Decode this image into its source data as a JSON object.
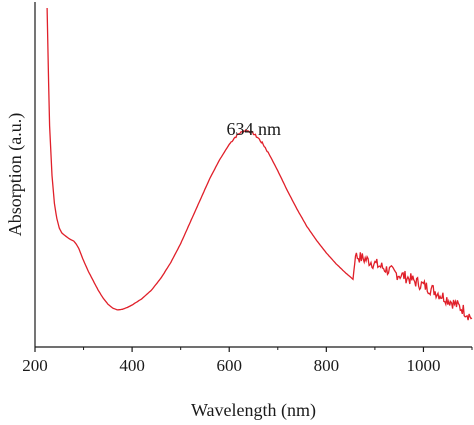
{
  "chart_data": {
    "type": "line",
    "title": "",
    "xlabel": "Wavelength (nm)",
    "ylabel": "Absorption (a.u.)",
    "xlim": [
      200,
      1100
    ],
    "ylim": [
      0,
      1
    ],
    "x_ticks": [
      200,
      400,
      600,
      800,
      1000
    ],
    "x_tick_labels": [
      "200",
      "400",
      "600",
      "800",
      "1000"
    ],
    "y_ticks_shown": false,
    "grid": false,
    "legend": "none",
    "colors": {
      "line": "#e0202a",
      "axis": "#1a1a1a"
    },
    "annotations": [
      {
        "text": "634 nm",
        "x": 634,
        "y": 0.62
      }
    ],
    "series": [
      {
        "x": [
          225,
          226,
          228,
          230,
          235,
          240,
          245,
          250,
          255,
          260,
          265,
          270,
          275,
          280,
          285,
          290,
          295,
          300,
          310,
          320,
          330,
          340,
          350,
          360,
          370,
          380,
          390,
          400,
          420,
          440,
          460,
          480,
          500,
          520,
          540,
          560,
          580,
          600,
          610,
          620,
          630,
          634,
          640,
          650,
          660,
          670,
          680,
          700,
          720,
          740,
          760,
          780,
          800,
          820,
          840,
          855,
          860,
          880,
          900,
          920,
          940,
          960,
          980,
          1000,
          1020,
          1040,
          1060,
          1080,
          1100
        ],
        "values": [
          1.0,
          0.92,
          0.76,
          0.62,
          0.46,
          0.37,
          0.32,
          0.29,
          0.275,
          0.268,
          0.262,
          0.256,
          0.252,
          0.248,
          0.238,
          0.225,
          0.205,
          0.185,
          0.15,
          0.12,
          0.09,
          0.065,
          0.045,
          0.032,
          0.026,
          0.028,
          0.034,
          0.042,
          0.062,
          0.09,
          0.13,
          0.18,
          0.24,
          0.31,
          0.38,
          0.45,
          0.51,
          0.56,
          0.58,
          0.595,
          0.603,
          0.605,
          0.603,
          0.595,
          0.58,
          0.56,
          0.535,
          0.475,
          0.41,
          0.35,
          0.295,
          0.25,
          0.21,
          0.175,
          0.145,
          0.125,
          0.2,
          0.19,
          0.175,
          0.16,
          0.145,
          0.135,
          0.12,
          0.105,
          0.09,
          0.07,
          0.05,
          0.03,
          0.0
        ]
      }
    ]
  }
}
